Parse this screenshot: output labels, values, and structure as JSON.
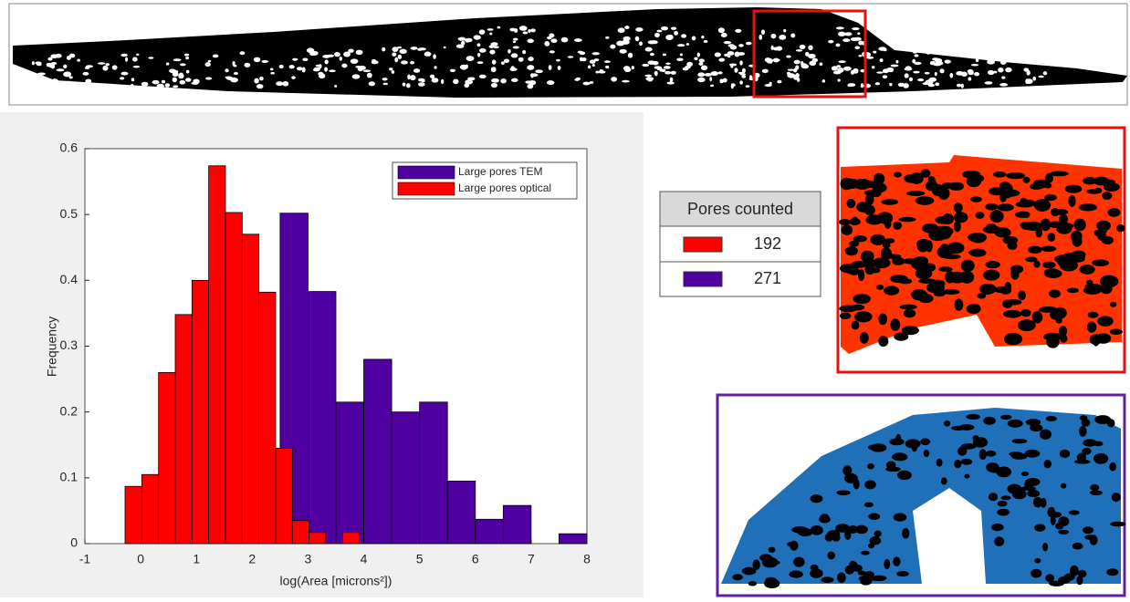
{
  "chart_data": {
    "type": "histogram",
    "xlabel": "log(Area [microns²])",
    "ylabel": "Frequency",
    "xlim": [
      -1,
      8
    ],
    "xticks": [
      -1,
      0,
      1,
      2,
      3,
      4,
      5,
      6,
      7,
      8
    ],
    "ylim": [
      0,
      0.6
    ],
    "yticks": [
      0,
      0.1,
      0.2,
      0.3,
      0.4,
      0.5,
      0.6
    ],
    "legend": "upper right",
    "series": [
      {
        "name": "Large pores TEM",
        "color": "#5000a0",
        "bins": [
          2.5,
          3,
          3.5,
          4,
          4.5,
          5,
          5.5,
          6,
          6.5,
          7,
          7.5,
          8
        ],
        "values": [
          0.502,
          0.383,
          0.215,
          0.28,
          0.2,
          0.215,
          0.095,
          0.037,
          0.058,
          0,
          0.015
        ]
      },
      {
        "name": "Large pores optical",
        "color": "#ff0000",
        "bins": [
          -0.28,
          0.02,
          0.32,
          0.62,
          0.92,
          1.22,
          1.52,
          1.82,
          2.12,
          2.42,
          2.72,
          3.02,
          3.32,
          3.62,
          3.92
        ],
        "values": [
          0.087,
          0.105,
          0.26,
          0.348,
          0.4,
          0.574,
          0.503,
          0.47,
          0.382,
          0.145,
          0.035,
          0.017,
          0,
          0.017
        ]
      }
    ]
  },
  "table": {
    "header": "Pores counted",
    "rows": [
      {
        "color": "#ff0000",
        "count": "192"
      },
      {
        "color": "#5000a0",
        "count": "271"
      }
    ]
  }
}
